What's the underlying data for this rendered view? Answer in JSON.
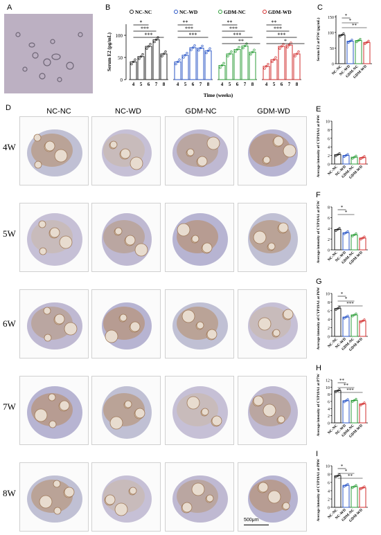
{
  "panels": {
    "A": "A",
    "B": "B",
    "C": "C",
    "D": "D",
    "E": "E",
    "F": "F",
    "G": "G",
    "H": "H",
    "I": "I"
  },
  "groups": [
    "NC-NC",
    "NC-WD",
    "GDM-NC",
    "GDM-WD"
  ],
  "colors": {
    "NC-NC": "#222222",
    "NC-WD": "#2a56c6",
    "GDM-NC": "#2e9e3a",
    "GDM-WD": "#d22d2d"
  },
  "weeks_row_labels": [
    "4W",
    "5W",
    "6W",
    "7W",
    "8W"
  ],
  "scale_bar": "500μm",
  "chart_data": [
    {
      "id": "B",
      "type": "bar",
      "ylabel": "Serum E2 (pg/mL)",
      "xlabel": "Time (weeks)",
      "ylim": [
        0,
        125
      ],
      "yticks": [
        0,
        50,
        100
      ],
      "legend": [
        "NC-NC",
        "NC-WD",
        "GDM-NC",
        "GDM-WD"
      ],
      "categories": [
        "4",
        "5",
        "6",
        "7",
        "8"
      ],
      "series": [
        {
          "name": "NC-NC",
          "values": [
            40,
            52,
            75,
            90,
            58
          ],
          "sig": [
            "*",
            "***",
            "***"
          ]
        },
        {
          "name": "NC-WD",
          "values": [
            40,
            55,
            72,
            71,
            65
          ],
          "sig": [
            "**",
            "***",
            "***"
          ]
        },
        {
          "name": "GDM-NC",
          "values": [
            32,
            58,
            68,
            76,
            62
          ],
          "sig": [
            "**",
            "***",
            "***",
            "**"
          ]
        },
        {
          "name": "GDM-WD",
          "values": [
            30,
            45,
            75,
            78,
            58
          ],
          "sig": [
            "**",
            "***",
            "***",
            "*"
          ]
        }
      ]
    },
    {
      "id": "C",
      "type": "bar",
      "ylabel": "Serum E2 at P5W (pg/mL)",
      "ylim": [
        0,
        155
      ],
      "yticks": [
        0,
        50,
        100,
        150
      ],
      "categories": [
        "NC-NC",
        "NC-WD",
        "GDM-NC",
        "GDM-WD"
      ],
      "values": [
        92,
        72,
        74,
        68
      ],
      "sig": [
        "*",
        "*",
        "**"
      ]
    },
    {
      "id": "E",
      "type": "bar",
      "ylabel": "Average intensity of CYP19A1 at P4W (%)",
      "ylim": [
        0,
        10
      ],
      "yticks": [
        0,
        2,
        4,
        6,
        8,
        10
      ],
      "categories": [
        "NC-NC",
        "NC-WD",
        "GDM-NC",
        "GDM-WD"
      ],
      "values": [
        2.2,
        2.0,
        1.6,
        1.5
      ],
      "sig": []
    },
    {
      "id": "F",
      "type": "bar",
      "ylabel": "Average intensity of CYP19A1 at P5W (%)",
      "ylim": [
        0,
        8
      ],
      "yticks": [
        0,
        2,
        4,
        6,
        8
      ],
      "categories": [
        "NC-NC",
        "NC-WD",
        "GDM-NC",
        "GDM-WD"
      ],
      "values": [
        3.8,
        3.2,
        2.8,
        2.2
      ],
      "sig": [
        "*",
        "*"
      ]
    },
    {
      "id": "G",
      "type": "bar",
      "ylabel": "Average intensity of CYP19A1 at P6W (%)",
      "ylim": [
        0,
        10
      ],
      "yticks": [
        0,
        2,
        4,
        6,
        8,
        10
      ],
      "categories": [
        "NC-NC",
        "NC-WD",
        "GDM-NC",
        "GDM-WD"
      ],
      "values": [
        6.5,
        4.5,
        5.0,
        3.6
      ],
      "sig": [
        "*",
        "*",
        "***"
      ]
    },
    {
      "id": "H",
      "type": "bar",
      "ylabel": "Average intensity of CYP19A1 at P7W (%)",
      "ylim": [
        0,
        12
      ],
      "yticks": [
        0,
        2,
        4,
        6,
        8,
        10,
        12
      ],
      "categories": [
        "NC-NC",
        "NC-WD",
        "GDM-NC",
        "GDM-WD"
      ],
      "values": [
        9.0,
        6.2,
        6.3,
        5.3
      ],
      "sig": [
        "**",
        "**",
        "***"
      ]
    },
    {
      "id": "I",
      "type": "bar",
      "ylabel": "Average intensity of CYP19A1 at P8W (%)",
      "ylim": [
        0,
        10
      ],
      "yticks": [
        0,
        2,
        4,
        6,
        8,
        10
      ],
      "categories": [
        "NC-NC",
        "NC-WD",
        "GDM-NC",
        "GDM-WD"
      ],
      "values": [
        7.6,
        5.3,
        5.0,
        4.7
      ],
      "sig": [
        "*",
        "*",
        "**"
      ]
    }
  ]
}
